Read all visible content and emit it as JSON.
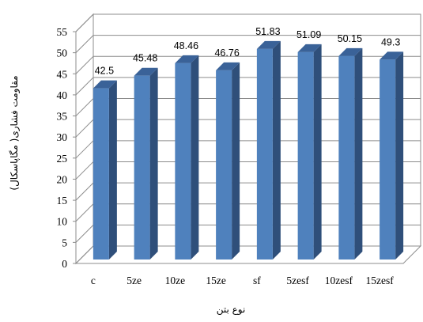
{
  "chart_data": {
    "type": "bar",
    "categories": [
      "c",
      "5ze",
      "10ze",
      "15ze",
      "sf",
      "5zesf",
      "10zesf",
      "15zesf"
    ],
    "values": [
      42.5,
      45.48,
      48.46,
      46.76,
      51.83,
      51.09,
      50.15,
      49.3
    ],
    "data_labels": [
      "42.5",
      "45.48",
      "48.46",
      "46.76",
      "51.83",
      "51.09",
      "50.15",
      "49.3"
    ],
    "title": "",
    "xlabel": "نوع بتن",
    "ylabel": "مقاومت فشاری( مگاپاسکال)",
    "ylim": [
      0,
      55
    ],
    "yticks": [
      "0",
      "5",
      "10",
      "15",
      "20",
      "25",
      "30",
      "35",
      "40",
      "45",
      "50",
      "55"
    ],
    "grid": true,
    "legend": "none",
    "style": "3d-bar",
    "colors": {
      "bar_front": "#4f81bd",
      "bar_side": "#2f4f7a",
      "bar_top": "#3a6298",
      "grid": "#8c8c8c",
      "wall": "#ffffff"
    }
  }
}
